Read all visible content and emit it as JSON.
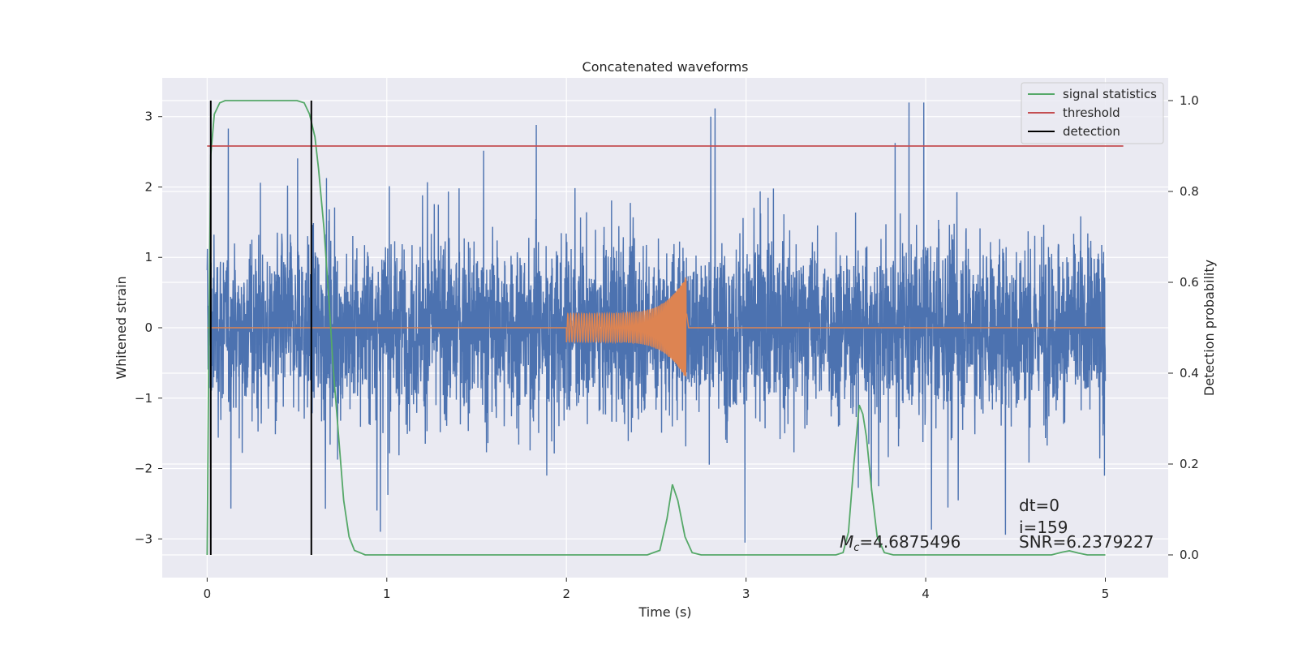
{
  "chart_data": {
    "type": "line",
    "title": "Concatenated waveforms",
    "xlabel": "Time (s)",
    "ylabel": "Whitened strain",
    "y2label": "Detection probability",
    "xlim": [
      -0.25,
      5.35
    ],
    "ylim": [
      -3.55,
      3.55
    ],
    "y2lim": [
      -0.05,
      1.05
    ],
    "x_ticks": [
      0,
      1,
      2,
      3,
      4,
      5
    ],
    "y_ticks": [
      -3,
      -2,
      -1,
      0,
      1,
      2,
      3
    ],
    "y2_ticks": [
      0.0,
      0.2,
      0.4,
      0.6,
      0.8,
      1.0
    ],
    "y2_tick_labels": [
      "0.0",
      "0.2",
      "0.4",
      "0.6",
      "0.8",
      "1.0"
    ],
    "grid": true,
    "legend_position": "top-right",
    "series": [
      {
        "name": "",
        "kind": "noise",
        "axis": "left",
        "color": "#4c72b0",
        "x_range": [
          0,
          5
        ],
        "amplitude_typical": 1.0,
        "peak_max": 3.2,
        "peak_min": -3.4
      },
      {
        "name": "",
        "kind": "chirp",
        "axis": "left",
        "color": "#dd8452",
        "x_range": [
          0,
          5
        ],
        "chirp_start": 2.0,
        "chirp_end": 2.67,
        "start_amplitude": 0.2,
        "peak_amplitude": 0.75
      },
      {
        "name": "signal statistics",
        "axis": "right",
        "color": "#55a868",
        "points": [
          [
            0.0,
            0.0
          ],
          [
            0.01,
            0.5
          ],
          [
            0.02,
            0.88
          ],
          [
            0.04,
            0.97
          ],
          [
            0.07,
            0.995
          ],
          [
            0.1,
            1.0
          ],
          [
            0.5,
            1.0
          ],
          [
            0.54,
            0.995
          ],
          [
            0.57,
            0.97
          ],
          [
            0.6,
            0.92
          ],
          [
            0.62,
            0.85
          ],
          [
            0.65,
            0.72
          ],
          [
            0.68,
            0.55
          ],
          [
            0.7,
            0.42
          ],
          [
            0.73,
            0.27
          ],
          [
            0.76,
            0.12
          ],
          [
            0.79,
            0.04
          ],
          [
            0.82,
            0.01
          ],
          [
            0.88,
            0.0
          ],
          [
            1.8,
            0.0
          ],
          [
            1.9,
            0.0
          ],
          [
            2.45,
            0.0
          ],
          [
            2.52,
            0.01
          ],
          [
            2.56,
            0.08
          ],
          [
            2.59,
            0.155
          ],
          [
            2.62,
            0.12
          ],
          [
            2.66,
            0.04
          ],
          [
            2.7,
            0.005
          ],
          [
            2.75,
            0.0
          ],
          [
            3.5,
            0.0
          ],
          [
            3.54,
            0.005
          ],
          [
            3.57,
            0.05
          ],
          [
            3.6,
            0.2
          ],
          [
            3.63,
            0.33
          ],
          [
            3.65,
            0.31
          ],
          [
            3.67,
            0.26
          ],
          [
            3.7,
            0.14
          ],
          [
            3.73,
            0.04
          ],
          [
            3.77,
            0.005
          ],
          [
            3.82,
            0.0
          ],
          [
            4.7,
            0.0
          ],
          [
            4.76,
            0.006
          ],
          [
            4.8,
            0.009
          ],
          [
            4.85,
            0.004
          ],
          [
            4.9,
            0.0
          ],
          [
            5.0,
            0.0
          ]
        ]
      },
      {
        "name": "threshold",
        "axis": "right",
        "color": "#c44e52",
        "x": [
          0,
          5.1
        ],
        "y": [
          0.9,
          0.9
        ]
      },
      {
        "name": "detection",
        "axis": "right",
        "color": "#000000",
        "vlines": [
          0.02,
          0.58
        ],
        "y": [
          0.0,
          1.0
        ]
      }
    ],
    "legend": [
      {
        "label": "signal statistics",
        "color": "#55a868"
      },
      {
        "label": "threshold",
        "color": "#c44e52"
      },
      {
        "label": "detection",
        "color": "#000000"
      }
    ],
    "annotations": {
      "dt": "dt=0",
      "i": "i=159",
      "snr": "SNR=6.2379227",
      "mc_symbol": "M",
      "mc_sub": "c",
      "mc_value": "=4.6875496"
    }
  }
}
